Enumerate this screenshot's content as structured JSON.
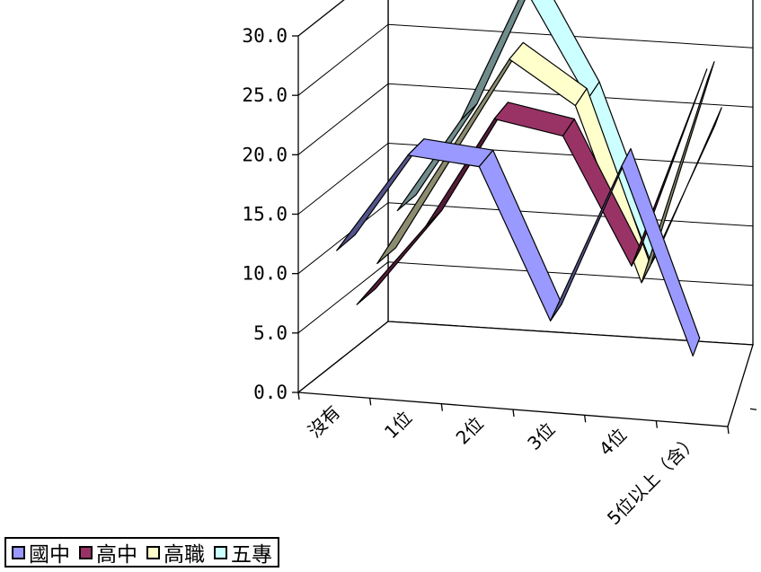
{
  "chart_data": {
    "type": "line",
    "style": "3d-ribbon",
    "categories": [
      "沒有",
      "1位",
      "2位",
      "3位",
      "4位",
      "5位以上（含）"
    ],
    "y_ticks": [
      "0.0",
      "5.0",
      "10.0",
      "15.0",
      "20.0",
      "25.0",
      "30.0"
    ],
    "ylim": [
      0,
      30
    ],
    "grid": true,
    "legend_position": "bottom-left",
    "series": [
      {
        "name": "國中",
        "color": "#9999ff",
        "values": [
          12.0,
          20.5,
          20.0,
          7.5,
          21.0,
          5.5
        ]
      },
      {
        "name": "高中",
        "color": "#993366",
        "values": [
          6.0,
          13.0,
          22.5,
          21.5,
          11.0,
          26.5
        ]
      },
      {
        "name": "高職",
        "color": "#ffffcc",
        "values": [
          8.0,
          17.0,
          26.0,
          22.5,
          8.0,
          25.5
        ]
      },
      {
        "name": "五專",
        "color": "#ccffff",
        "values": [
          11.0,
          19.0,
          30.5,
          21.5,
          8.0,
          20.0
        ]
      }
    ]
  }
}
